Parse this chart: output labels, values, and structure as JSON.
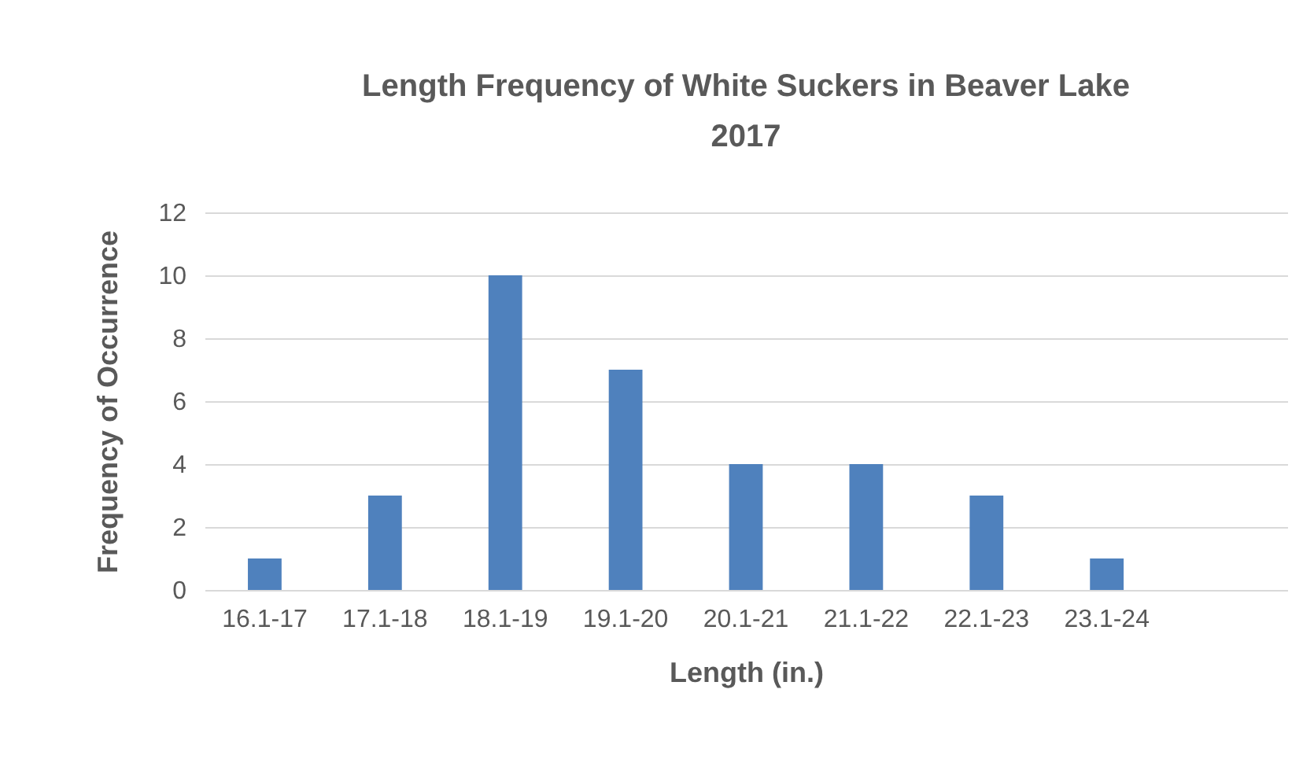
{
  "chart_data": {
    "type": "bar",
    "title": "Length Frequency of White Suckers in Beaver Lake 2017",
    "xlabel": "Length (in.)",
    "ylabel": "Frequency of Occurrence",
    "categories": [
      "16.1-17",
      "17.1-18",
      "18.1-19",
      "19.1-20",
      "20.1-21",
      "21.1-22",
      "22.1-23",
      "23.1-24",
      null
    ],
    "values": [
      1,
      3,
      10,
      7,
      4,
      4,
      3,
      1,
      null
    ],
    "color": "#4f81bd",
    "ylim": [
      0,
      12
    ],
    "yticks": [
      0,
      2,
      4,
      6,
      8,
      10,
      12
    ],
    "grid": "y"
  }
}
